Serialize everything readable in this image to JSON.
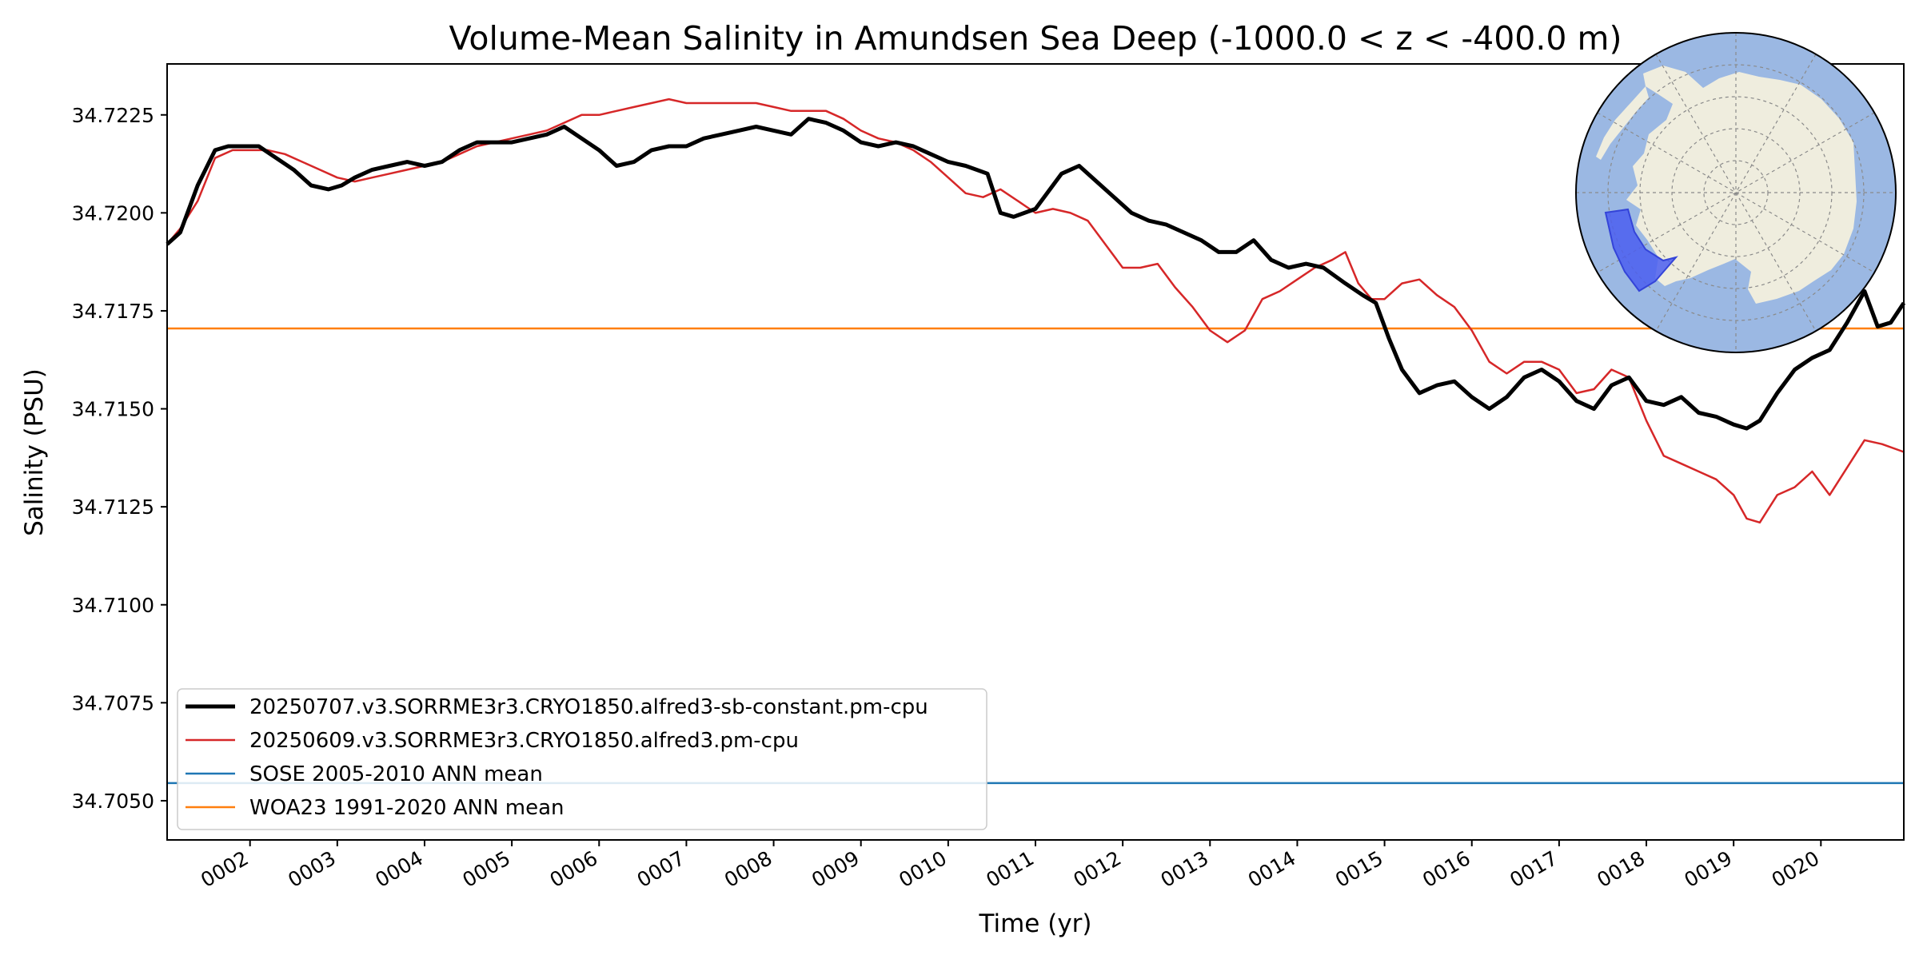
{
  "chart_data": {
    "type": "line",
    "title": "Volume-Mean Salinity in Amundsen Sea Deep (-1000.0 < z < -400.0 m)",
    "xlabel": "Time (yr)",
    "ylabel": "Salinity (PSU)",
    "xlim": [
      1.05,
      20.95
    ],
    "ylim": [
      34.704,
      34.7238
    ],
    "xticks": [
      2,
      3,
      4,
      5,
      6,
      7,
      8,
      9,
      10,
      11,
      12,
      13,
      14,
      15,
      16,
      17,
      18,
      19,
      20
    ],
    "xtick_labels": [
      "0002",
      "0003",
      "0004",
      "0005",
      "0006",
      "0007",
      "0008",
      "0009",
      "0010",
      "0011",
      "0012",
      "0013",
      "0014",
      "0015",
      "0016",
      "0017",
      "0018",
      "0019",
      "0020"
    ],
    "yticks": [
      34.705,
      34.7075,
      34.71,
      34.7125,
      34.715,
      34.7175,
      34.72,
      34.7225
    ],
    "ytick_labels": [
      "34.7050",
      "34.7075",
      "34.7100",
      "34.7125",
      "34.7150",
      "34.7175",
      "34.7200",
      "34.7225"
    ],
    "grid": false,
    "legend_position": "lower-left",
    "series": [
      {
        "name": "20250707.v3.SORRME3r3.CRYO1850.alfred3-sb-constant.pm-cpu",
        "color": "#000000",
        "style": "thick",
        "x": [
          1.05,
          1.2,
          1.4,
          1.6,
          1.75,
          1.9,
          2.1,
          2.3,
          2.5,
          2.7,
          2.9,
          3.05,
          3.2,
          3.4,
          3.6,
          3.8,
          4.0,
          4.2,
          4.4,
          4.6,
          4.8,
          5.0,
          5.2,
          5.4,
          5.6,
          5.8,
          6.0,
          6.2,
          6.4,
          6.6,
          6.8,
          7.0,
          7.2,
          7.4,
          7.6,
          7.8,
          8.0,
          8.2,
          8.4,
          8.6,
          8.8,
          9.0,
          9.2,
          9.4,
          9.6,
          9.8,
          10.0,
          10.2,
          10.45,
          10.6,
          10.75,
          11.0,
          11.3,
          11.5,
          11.7,
          11.9,
          12.1,
          12.3,
          12.5,
          12.7,
          12.9,
          13.1,
          13.3,
          13.5,
          13.7,
          13.9,
          14.1,
          14.3,
          14.55,
          14.75,
          14.9,
          15.05,
          15.2,
          15.4,
          15.6,
          15.8,
          16.0,
          16.2,
          16.4,
          16.6,
          16.8,
          17.0,
          17.2,
          17.4,
          17.6,
          17.8,
          18.0,
          18.2,
          18.4,
          18.6,
          18.8,
          19.0,
          19.15,
          19.3,
          19.5,
          19.7,
          19.9,
          20.1,
          20.3,
          20.5,
          20.65,
          20.8,
          20.95
        ],
        "values": [
          34.7192,
          34.7195,
          34.7207,
          34.7216,
          34.7217,
          34.7217,
          34.7217,
          34.7214,
          34.7211,
          34.7207,
          34.7206,
          34.7207,
          34.7209,
          34.7211,
          34.7212,
          34.7213,
          34.7212,
          34.7213,
          34.7216,
          34.7218,
          34.7218,
          34.7218,
          34.7219,
          34.722,
          34.7222,
          34.7219,
          34.7216,
          34.7212,
          34.7213,
          34.7216,
          34.7217,
          34.7217,
          34.7219,
          34.722,
          34.7221,
          34.7222,
          34.7221,
          34.722,
          34.7224,
          34.7223,
          34.7221,
          34.7218,
          34.7217,
          34.7218,
          34.7217,
          34.7215,
          34.7213,
          34.7212,
          34.721,
          34.72,
          34.7199,
          34.7201,
          34.721,
          34.7212,
          34.7208,
          34.7204,
          34.72,
          34.7198,
          34.7197,
          34.7195,
          34.7193,
          34.719,
          34.719,
          34.7193,
          34.7188,
          34.7186,
          34.7187,
          34.7186,
          34.7182,
          34.7179,
          34.7177,
          34.7168,
          34.716,
          34.7154,
          34.7156,
          34.7157,
          34.7153,
          34.715,
          34.7153,
          34.7158,
          34.716,
          34.7157,
          34.7152,
          34.715,
          34.7156,
          34.7158,
          34.7152,
          34.7151,
          34.7153,
          34.7149,
          34.7148,
          34.7146,
          34.7145,
          34.7147,
          34.7154,
          34.716,
          34.7163,
          34.7165,
          34.7172,
          34.718,
          34.7171,
          34.7172,
          34.7177
        ]
      },
      {
        "name": "20250609.v3.SORRME3r3.CRYO1850.alfred3.pm-cpu",
        "color": "#d62728",
        "style": "thin",
        "x": [
          1.05,
          1.2,
          1.4,
          1.6,
          1.8,
          2.0,
          2.2,
          2.4,
          2.6,
          2.8,
          3.0,
          3.2,
          3.4,
          3.6,
          3.8,
          4.0,
          4.2,
          4.4,
          4.6,
          4.8,
          5.0,
          5.2,
          5.4,
          5.6,
          5.8,
          6.0,
          6.2,
          6.4,
          6.6,
          6.8,
          7.0,
          7.2,
          7.4,
          7.6,
          7.8,
          8.0,
          8.2,
          8.4,
          8.6,
          8.8,
          9.0,
          9.2,
          9.4,
          9.6,
          9.8,
          10.0,
          10.2,
          10.4,
          10.6,
          10.8,
          11.0,
          11.2,
          11.4,
          11.6,
          11.8,
          12.0,
          12.2,
          12.4,
          12.6,
          12.8,
          13.0,
          13.2,
          13.4,
          13.6,
          13.8,
          14.0,
          14.2,
          14.4,
          14.55,
          14.7,
          14.85,
          15.0,
          15.2,
          15.4,
          15.6,
          15.8,
          16.0,
          16.2,
          16.4,
          16.6,
          16.8,
          17.0,
          17.2,
          17.4,
          17.6,
          17.8,
          18.0,
          18.2,
          18.4,
          18.6,
          18.8,
          19.0,
          19.15,
          19.3,
          19.5,
          19.7,
          19.9,
          20.1,
          20.3,
          20.5,
          20.7,
          20.95
        ],
        "values": [
          34.7192,
          34.7196,
          34.7203,
          34.7214,
          34.7216,
          34.7216,
          34.7216,
          34.7215,
          34.7213,
          34.7211,
          34.7209,
          34.7208,
          34.7209,
          34.721,
          34.7211,
          34.7212,
          34.7213,
          34.7215,
          34.7217,
          34.7218,
          34.7219,
          34.722,
          34.7221,
          34.7223,
          34.7225,
          34.7225,
          34.7226,
          34.7227,
          34.7228,
          34.7229,
          34.7228,
          34.7228,
          34.7228,
          34.7228,
          34.7228,
          34.7227,
          34.7226,
          34.7226,
          34.7226,
          34.7224,
          34.7221,
          34.7219,
          34.7218,
          34.7216,
          34.7213,
          34.7209,
          34.7205,
          34.7204,
          34.7206,
          34.7203,
          34.72,
          34.7201,
          34.72,
          34.7198,
          34.7192,
          34.7186,
          34.7186,
          34.7187,
          34.7181,
          34.7176,
          34.717,
          34.7167,
          34.717,
          34.7178,
          34.718,
          34.7183,
          34.7186,
          34.7188,
          34.719,
          34.7182,
          34.7178,
          34.7178,
          34.7182,
          34.7183,
          34.7179,
          34.7176,
          34.717,
          34.7162,
          34.7159,
          34.7162,
          34.7162,
          34.716,
          34.7154,
          34.7155,
          34.716,
          34.7158,
          34.7147,
          34.7138,
          34.7136,
          34.7134,
          34.7132,
          34.7128,
          34.7122,
          34.7121,
          34.7128,
          34.713,
          34.7134,
          34.7128,
          34.7135,
          34.7142,
          34.7141,
          34.7139
        ]
      },
      {
        "name": "SOSE 2005-2010 ANN mean",
        "color": "#1f77b4",
        "style": "hline",
        "value": 34.70545
      },
      {
        "name": "WOA23 1991-2020 ANN mean",
        "color": "#ff7f0e",
        "style": "hline",
        "value": 34.71705
      }
    ],
    "inset_map": {
      "ocean_color": "#9bb8e3",
      "land_color": "#efedde",
      "region_color": "#4b5ef0"
    }
  }
}
